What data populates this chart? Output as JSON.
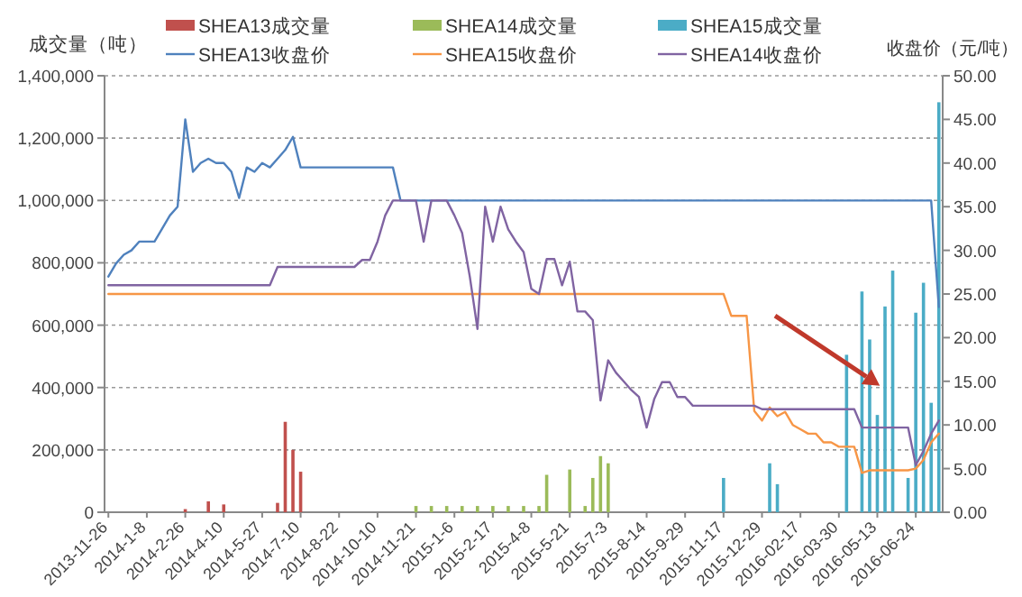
{
  "chart_data": {
    "type": "bar",
    "ylabel": "成交量（吨）",
    "y2label": "收盘价（元/吨）",
    "categories": [
      "2013-11-26",
      null,
      null,
      null,
      null,
      "2014-1-8",
      null,
      null,
      null,
      null,
      "2014-2-26",
      null,
      null,
      null,
      null,
      "2014-4-10",
      null,
      null,
      null,
      null,
      "2014-5-27",
      null,
      null,
      null,
      null,
      "2014-7-10",
      null,
      null,
      null,
      null,
      "2014-8-22",
      null,
      null,
      null,
      null,
      "2014-10-10",
      null,
      null,
      null,
      null,
      "2014-11-21",
      null,
      null,
      null,
      null,
      "2015-1-6",
      null,
      null,
      null,
      null,
      "2015-2-17",
      null,
      null,
      null,
      null,
      "2015-4-8",
      null,
      null,
      null,
      null,
      "2015-5-21",
      null,
      null,
      null,
      null,
      "2015-7-3",
      null,
      null,
      null,
      null,
      "2015-8-14",
      null,
      null,
      null,
      null,
      "2015-9-29",
      null,
      null,
      null,
      null,
      "2015-11-17",
      null,
      null,
      null,
      null,
      "2015-12-29",
      null,
      null,
      null,
      null,
      "2016-02-17",
      null,
      null,
      null,
      null,
      "2016-03-30",
      null,
      null,
      null,
      null,
      "2016-05-13",
      null,
      null,
      null,
      null,
      "2016-06-24",
      null,
      null,
      null
    ],
    "series": [
      {
        "name": "SHEA13成交量",
        "color": "#c0504d",
        "values": [
          null,
          null,
          null,
          null,
          null,
          null,
          null,
          null,
          null,
          null,
          10000,
          null,
          null,
          35000,
          null,
          25000,
          null,
          null,
          null,
          null,
          null,
          null,
          30000,
          290000,
          200000,
          130000,
          null,
          null,
          null,
          null,
          null,
          null,
          null,
          null,
          null,
          null,
          null,
          null,
          null,
          null,
          null,
          null,
          null,
          null,
          null,
          null,
          null,
          null,
          null,
          null,
          null,
          null,
          null,
          null,
          null,
          null,
          null,
          null,
          null,
          null,
          null,
          null,
          null,
          null,
          null,
          null,
          null,
          null,
          null,
          null,
          null,
          null,
          null,
          null,
          null,
          null,
          null,
          null,
          null,
          null,
          null,
          null,
          null,
          null,
          null,
          null,
          null,
          null,
          null,
          null,
          null,
          null,
          null,
          null,
          null,
          null,
          null,
          null,
          null,
          null,
          null,
          null,
          null,
          null,
          null,
          null,
          null,
          null,
          null
        ]
      },
      {
        "name": "SHEA14成交量",
        "color": "#9bbb59",
        "values": [
          null,
          null,
          null,
          null,
          null,
          null,
          null,
          null,
          null,
          null,
          null,
          null,
          null,
          null,
          null,
          null,
          null,
          null,
          null,
          null,
          null,
          null,
          null,
          null,
          null,
          null,
          null,
          null,
          null,
          null,
          null,
          null,
          null,
          null,
          null,
          null,
          null,
          null,
          null,
          null,
          20000,
          null,
          20000,
          null,
          20000,
          null,
          20000,
          null,
          20000,
          null,
          20000,
          null,
          20000,
          null,
          20000,
          null,
          20000,
          120000,
          null,
          null,
          137000,
          null,
          20000,
          110000,
          180000,
          157000,
          null,
          null,
          null,
          null,
          null,
          null,
          null,
          null,
          null,
          null,
          null,
          null,
          null,
          null,
          null,
          null,
          null,
          null,
          null,
          null,
          null,
          null,
          null,
          null,
          null,
          null,
          null,
          null,
          null,
          null,
          null,
          null,
          null,
          null,
          null,
          null,
          null,
          null,
          null,
          null,
          null,
          null,
          null
        ]
      },
      {
        "name": "SHEA15成交量",
        "color": "#4bacc6",
        "values": [
          null,
          null,
          null,
          null,
          null,
          null,
          null,
          null,
          null,
          null,
          null,
          null,
          null,
          null,
          null,
          null,
          null,
          null,
          null,
          null,
          null,
          null,
          null,
          null,
          null,
          null,
          null,
          null,
          null,
          null,
          null,
          null,
          null,
          null,
          null,
          null,
          null,
          null,
          null,
          null,
          null,
          null,
          null,
          null,
          null,
          null,
          null,
          null,
          null,
          null,
          null,
          null,
          null,
          null,
          null,
          null,
          null,
          null,
          null,
          null,
          null,
          null,
          null,
          null,
          null,
          null,
          null,
          null,
          null,
          null,
          null,
          null,
          null,
          null,
          null,
          null,
          null,
          null,
          null,
          null,
          110000,
          null,
          null,
          null,
          null,
          null,
          157000,
          90000,
          null,
          null,
          null,
          null,
          null,
          null,
          null,
          null,
          505000,
          null,
          708000,
          554000,
          312000,
          660000,
          775000,
          null,
          110000,
          640000,
          736000,
          351000,
          1315000
        ]
      },
      {
        "name": "SHEA13收盘价",
        "type": "line",
        "axis": "y2",
        "color": "#4f81bd",
        "values": [
          27,
          28.5,
          29.5,
          30,
          31,
          31,
          31,
          32.5,
          34,
          35,
          45,
          39,
          40,
          40.5,
          40,
          40,
          39,
          36,
          39.5,
          39,
          40,
          39.5,
          40.5,
          41.5,
          43,
          39.5,
          39.5,
          39.5,
          39.5,
          39.5,
          39.5,
          39.5,
          39.5,
          39.5,
          39.5,
          39.5,
          39.5,
          39.5,
          35.7,
          35.7,
          35.7,
          35.7,
          35.7,
          35.7,
          35.7,
          35.7,
          35.7,
          35.7,
          35.7,
          35.7,
          35.7,
          35.7,
          35.7,
          35.7,
          35.7,
          35.7,
          35.7,
          35.7,
          35.7,
          35.7,
          35.7,
          35.7,
          35.7,
          35.7,
          35.7,
          35.7,
          35.7,
          35.7,
          35.7,
          35.7,
          35.7,
          35.7,
          35.7,
          35.7,
          35.7,
          35.7,
          35.7,
          35.7,
          35.7,
          35.7,
          35.7,
          35.7,
          35.7,
          35.7,
          35.7,
          35.7,
          35.7,
          35.7,
          35.7,
          35.7,
          35.7,
          35.7,
          35.7,
          35.7,
          35.7,
          35.7,
          35.7,
          35.7,
          35.7,
          35.7,
          35.7,
          35.7,
          35.7,
          35.7,
          35.7,
          35.7,
          35.7,
          35.7,
          23.5
        ]
      },
      {
        "name": "SHEA15收盘价",
        "type": "line",
        "axis": "y2",
        "color": "#f79646",
        "values": [
          25,
          25,
          25,
          25,
          25,
          25,
          25,
          25,
          25,
          25,
          25,
          25,
          25,
          25,
          25,
          25,
          25,
          25,
          25,
          25,
          25,
          25,
          25,
          25,
          25,
          25,
          25,
          25,
          25,
          25,
          25,
          25,
          25,
          25,
          25,
          25,
          25,
          25,
          25,
          25,
          25,
          25,
          25,
          25,
          25,
          25,
          25,
          25,
          25,
          25,
          25,
          25,
          25,
          25,
          25,
          25,
          25,
          25,
          25,
          25,
          25,
          25,
          25,
          25,
          25,
          25,
          25,
          25,
          25,
          25,
          25,
          25,
          25,
          25,
          25,
          25,
          25,
          25,
          25,
          25,
          25,
          22.5,
          22.5,
          22.5,
          11.6,
          10.5,
          12,
          11,
          11.5,
          10,
          9.5,
          9,
          9,
          8,
          8,
          7.5,
          7.5,
          7.5,
          4.5,
          4.8,
          4.8,
          4.8,
          4.8,
          4.8,
          4.8,
          5,
          6,
          8,
          9
        ]
      },
      {
        "name": "SHEA14收盘价",
        "type": "line",
        "axis": "y2",
        "color": "#8064a2",
        "values": [
          26,
          26,
          26,
          26,
          26,
          26,
          26,
          26,
          26,
          26,
          26,
          26,
          26,
          26,
          26,
          26,
          26,
          26,
          26,
          26,
          26,
          26,
          28.1,
          28.1,
          28.1,
          28.1,
          28.1,
          28.1,
          28.1,
          28.1,
          28.1,
          28.1,
          28.1,
          28.9,
          28.9,
          31,
          34,
          35.7,
          35.7,
          35.7,
          35.7,
          31,
          35.7,
          35.7,
          35.7,
          34,
          32,
          27,
          21,
          35,
          31,
          35,
          32.4,
          31,
          29.8,
          25.6,
          25,
          29,
          29,
          26,
          28.7,
          23,
          23,
          22,
          12.8,
          17.4,
          16,
          15,
          14,
          13.2,
          9.7,
          13,
          14.9,
          14.9,
          13.2,
          13.2,
          12.2,
          12.2,
          12.2,
          12.2,
          12.2,
          12.2,
          12.2,
          12.2,
          12.2,
          11.8,
          11.8,
          11.8,
          11.8,
          11.8,
          11.8,
          11.8,
          11.8,
          11.8,
          11.8,
          11.8,
          11.8,
          11.8,
          9.7,
          9.7,
          9.7,
          9.7,
          9.7,
          9.7,
          9.7,
          5.4,
          7,
          9,
          10.5
        ]
      }
    ],
    "ylim": [
      0,
      1400000
    ],
    "yticks": [
      0,
      {
        "value": 200000,
        "label": "200,000"
      },
      {
        "value": 400000,
        "label": "400,000"
      },
      {
        "value": 600000,
        "label": "600,000"
      },
      {
        "value": 800000,
        "label": "800,000"
      },
      {
        "value": 1000000,
        "label": "1,000,000"
      },
      {
        "value": 1200000,
        "label": "1,200,000"
      },
      {
        "value": 1400000,
        "label": "1,400,000"
      }
    ],
    "y2lim": [
      0,
      50
    ],
    "y2ticks": [
      {
        "value": 0,
        "label": "0.00"
      },
      {
        "value": 5,
        "label": "5.00"
      },
      {
        "value": 10,
        "label": "10.00"
      },
      {
        "value": 15,
        "label": "15.00"
      },
      {
        "value": 20,
        "label": "20.00"
      },
      {
        "value": 25,
        "label": "25.00"
      },
      {
        "value": 30,
        "label": "30.00"
      },
      {
        "value": 35,
        "label": "35.00"
      },
      {
        "value": 40,
        "label": "40.00"
      },
      {
        "value": 45,
        "label": "45.00"
      },
      {
        "value": 50,
        "label": "50.00"
      }
    ],
    "grid": "y",
    "legend": "top"
  }
}
